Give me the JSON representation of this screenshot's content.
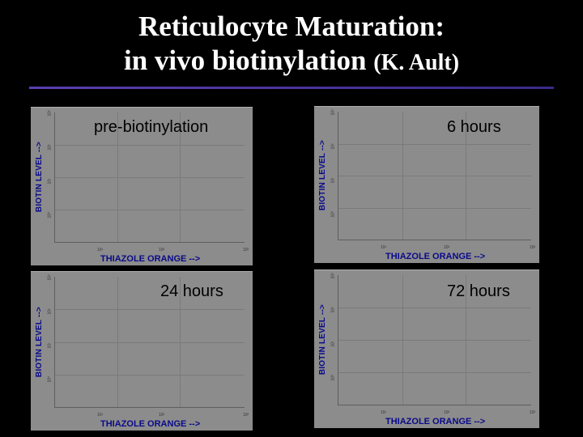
{
  "slide": {
    "title_line1": "Reticulocyte Maturation:",
    "title_line2": "in vivo biotinylation",
    "title_author": "(K. Ault)"
  },
  "axes": {
    "ylabel": "BIOTIN LEVEL -->",
    "xlabel": "THIAZOLE ORANGE -->",
    "yticks": [
      "10³",
      "10²",
      "10¹",
      "10⁰"
    ],
    "xticks": [
      "10¹",
      "10²",
      "10³"
    ]
  },
  "panels": [
    {
      "caption": "pre-biotinylation"
    },
    {
      "caption": "6 hours"
    },
    {
      "caption": "24 hours"
    },
    {
      "caption": "72 hours"
    }
  ],
  "colors": {
    "background": "#000000",
    "panel": "#8c8c8c",
    "axis_label": "#0a0a8a",
    "title": "#ffffff",
    "rule": "#4b3aa0"
  }
}
